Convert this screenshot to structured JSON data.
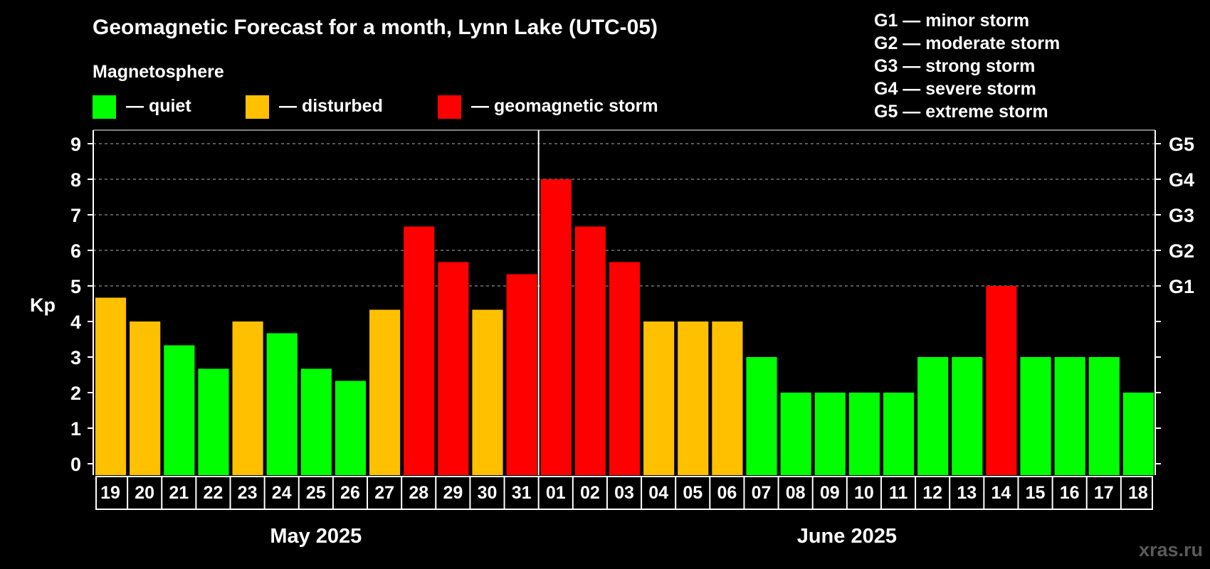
{
  "colors": {
    "background": "#000000",
    "quiet": "#00ff00",
    "disturbed": "#ffc000",
    "storm": "#ff0000",
    "grid": "#8c8c8c",
    "text": "#ffffff",
    "watermark": "#5a5a5a"
  },
  "chart_data": {
    "type": "bar",
    "title": "Geomagnetic Forecast for a month, Lynn Lake (UTC-05)",
    "ylabel": "Kp",
    "ylim": [
      0,
      9
    ],
    "yticks": [
      "0",
      "1",
      "2",
      "3",
      "4",
      "5",
      "6",
      "7",
      "8",
      "9"
    ],
    "right_axis": [
      {
        "kp": 5,
        "label": "G1"
      },
      {
        "kp": 6,
        "label": "G2"
      },
      {
        "kp": 7,
        "label": "G3"
      },
      {
        "kp": 8,
        "label": "G4"
      },
      {
        "kp": 9,
        "label": "G5"
      }
    ],
    "legend": {
      "title": "Magnetosphere",
      "items": [
        {
          "label": "— quiet",
          "color": "#00ff00"
        },
        {
          "label": "— disturbed",
          "color": "#ffc000"
        },
        {
          "label": "— geomagnetic storm",
          "color": "#ff0000"
        }
      ]
    },
    "storm_scale": [
      "G1 — minor storm",
      "G2 — moderate storm",
      "G3 — strong storm",
      "G4 — severe storm",
      "G5 — extreme storm"
    ],
    "months": [
      {
        "label": "May 2025",
        "first_index": 0,
        "last_index": 12
      },
      {
        "label": "June 2025",
        "first_index": 13,
        "last_index": 30
      }
    ],
    "categories": [
      "19",
      "20",
      "21",
      "22",
      "23",
      "24",
      "25",
      "26",
      "27",
      "28",
      "29",
      "30",
      "31",
      "01",
      "02",
      "03",
      "04",
      "05",
      "06",
      "07",
      "08",
      "09",
      "10",
      "11",
      "12",
      "13",
      "14",
      "15",
      "16",
      "17",
      "18"
    ],
    "values": [
      4.67,
      4.0,
      3.33,
      2.67,
      4.0,
      3.67,
      2.67,
      2.33,
      4.33,
      6.67,
      5.67,
      4.33,
      5.33,
      8.0,
      6.67,
      5.67,
      4.0,
      4.0,
      4.0,
      3.0,
      2.0,
      2.0,
      2.0,
      2.0,
      3.0,
      3.0,
      5.0,
      3.0,
      3.0,
      3.0,
      2.0
    ],
    "status": [
      "disturbed",
      "disturbed",
      "quiet",
      "quiet",
      "disturbed",
      "quiet",
      "quiet",
      "quiet",
      "disturbed",
      "storm",
      "storm",
      "disturbed",
      "storm",
      "storm",
      "storm",
      "storm",
      "disturbed",
      "disturbed",
      "disturbed",
      "quiet",
      "quiet",
      "quiet",
      "quiet",
      "quiet",
      "quiet",
      "quiet",
      "storm",
      "quiet",
      "quiet",
      "quiet",
      "quiet"
    ]
  },
  "watermark": "xras.ru"
}
